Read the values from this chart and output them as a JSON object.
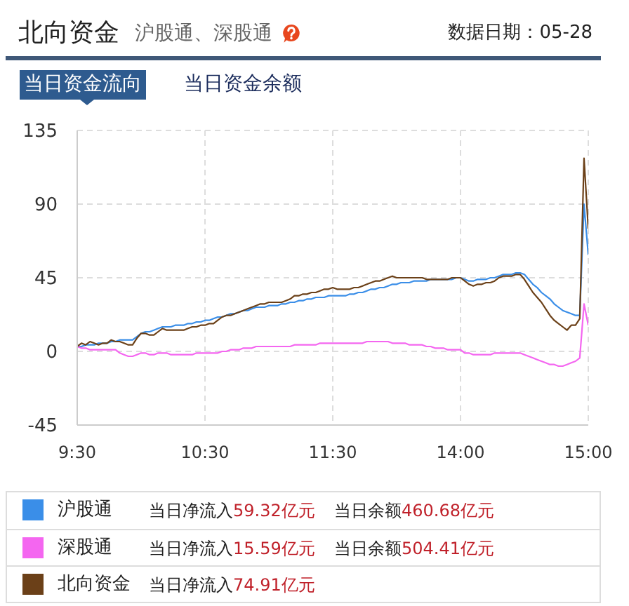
{
  "chart_data": {
    "type": "line",
    "title": "北向资金",
    "subtitle": "沪股通、深股通",
    "annotations": [
      "数据日期：05-28",
      "当日资金流向",
      "当日资金余额",
      "当日净流入59.32亿元",
      "当日余额460.68亿元",
      "当日净流入15.59亿元",
      "当日余额504.41亿元",
      "当日净流入74.91亿元"
    ],
    "categories": [
      "9:30",
      null,
      null,
      null,
      null,
      null,
      null,
      null,
      null,
      null,
      null,
      null,
      null,
      null,
      null,
      null,
      null,
      null,
      null,
      null,
      null,
      null,
      null,
      null,
      null,
      null,
      null,
      null,
      null,
      null,
      "10:30",
      null,
      null,
      null,
      null,
      null,
      null,
      null,
      null,
      null,
      null,
      null,
      null,
      null,
      null,
      null,
      null,
      null,
      null,
      null,
      null,
      null,
      null,
      null,
      null,
      null,
      null,
      null,
      null,
      null,
      "11:30",
      null,
      null,
      null,
      null,
      null,
      null,
      null,
      null,
      null,
      null,
      null,
      null,
      null,
      null,
      null,
      null,
      null,
      null,
      null,
      null,
      null,
      null,
      null,
      null,
      null,
      null,
      null,
      null,
      null,
      "14:00",
      null,
      null,
      null,
      null,
      null,
      null,
      null,
      null,
      null,
      null,
      null,
      null,
      null,
      null,
      null,
      null,
      null,
      null,
      null,
      null,
      null,
      null,
      null,
      null,
      null,
      null,
      null,
      null,
      null,
      "15:00"
    ],
    "series": [
      {
        "name": "沪股通",
        "color": "#3a8ee8",
        "values": [
          3,
          3,
          4,
          4,
          4,
          5,
          5,
          5,
          6,
          6,
          7,
          7,
          7,
          7,
          9,
          11,
          12,
          12,
          13,
          14,
          15,
          15,
          15,
          16,
          16,
          16,
          17,
          17,
          18,
          18,
          19,
          19,
          20,
          21,
          21,
          22,
          23,
          23,
          24,
          25,
          25,
          26,
          27,
          27,
          27,
          28,
          28,
          28,
          29,
          29,
          30,
          30,
          31,
          31,
          32,
          32,
          33,
          33,
          33,
          34,
          34,
          34,
          34,
          34,
          35,
          35,
          36,
          36,
          37,
          38,
          38,
          39,
          39,
          40,
          41,
          41,
          42,
          42,
          42,
          43,
          43,
          43,
          43,
          44,
          44,
          44,
          44,
          44,
          44,
          45,
          45,
          44,
          43,
          43,
          44,
          44,
          44,
          45,
          45,
          46,
          47,
          47,
          47,
          48,
          48,
          47,
          44,
          41,
          39,
          36,
          34,
          32,
          29,
          27,
          25,
          24,
          23,
          22,
          22,
          90,
          59
        ]
      },
      {
        "name": "深股通",
        "color": "#f466f0",
        "values": [
          3,
          2,
          2,
          1,
          1,
          1,
          1,
          1,
          1,
          1,
          -1,
          -2,
          -3,
          -3,
          -2,
          -1,
          -1,
          -2,
          -2,
          -1,
          -1,
          -1,
          -2,
          -2,
          -2,
          -2,
          -2,
          -2,
          -1,
          -1,
          -1,
          -1,
          -1,
          -1,
          0,
          0,
          1,
          1,
          1,
          2,
          2,
          2,
          3,
          3,
          3,
          3,
          3,
          3,
          3,
          3,
          3,
          4,
          4,
          4,
          4,
          4,
          4,
          5,
          5,
          5,
          5,
          5,
          5,
          5,
          5,
          5,
          5,
          5,
          6,
          6,
          6,
          6,
          6,
          6,
          5,
          5,
          5,
          5,
          4,
          4,
          4,
          4,
          3,
          3,
          2,
          2,
          2,
          1,
          1,
          1,
          1,
          -1,
          -1,
          -2,
          -2,
          -2,
          -2,
          -2,
          -1,
          -1,
          -1,
          -1,
          -1,
          -1,
          -1,
          -2,
          -3,
          -4,
          -5,
          -6,
          -7,
          -8,
          -8,
          -9,
          -9,
          -8,
          -7,
          -6,
          -4,
          29,
          16
        ]
      },
      {
        "name": "北向资金",
        "color": "#6b4018",
        "values": [
          3,
          5,
          4,
          6,
          5,
          4,
          5,
          5,
          7,
          6,
          6,
          5,
          4,
          4,
          8,
          11,
          11,
          10,
          10,
          12,
          14,
          13,
          13,
          13,
          13,
          13,
          14,
          15,
          15,
          16,
          16,
          17,
          17,
          19,
          21,
          22,
          22,
          23,
          24,
          25,
          26,
          27,
          28,
          29,
          29,
          30,
          30,
          30,
          30,
          31,
          32,
          34,
          34,
          35,
          35,
          36,
          36,
          37,
          38,
          38,
          39,
          38,
          38,
          38,
          38,
          39,
          39,
          40,
          41,
          42,
          43,
          43,
          44,
          45,
          46,
          45,
          45,
          45,
          45,
          45,
          45,
          45,
          44,
          44,
          44,
          44,
          44,
          44,
          45,
          45,
          45,
          43,
          41,
          40,
          41,
          41,
          42,
          42,
          43,
          45,
          46,
          46,
          46,
          47,
          47,
          44,
          40,
          36,
          33,
          30,
          26,
          22,
          19,
          17,
          15,
          13,
          16,
          16,
          20,
          118,
          75
        ]
      }
    ],
    "ylim": [
      -45,
      135
    ],
    "yticks": [
      -45,
      0,
      45,
      90,
      135
    ],
    "grid": true,
    "legend": "bottom"
  }
}
